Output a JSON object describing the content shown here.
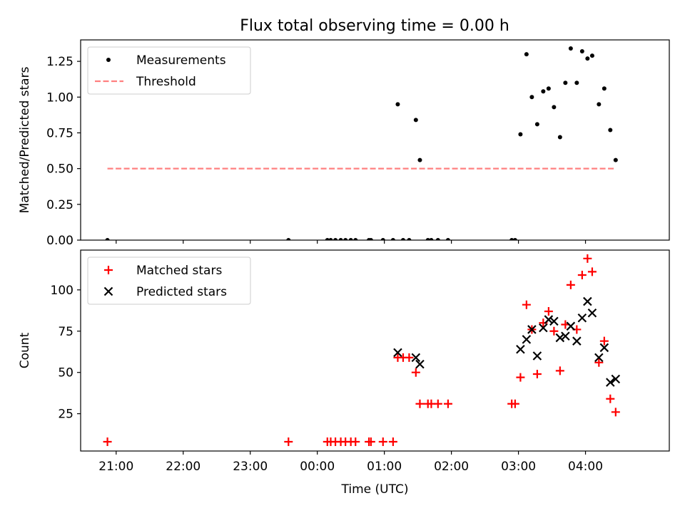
{
  "title": "Flux total observing time = 0.00 h",
  "colors": {
    "measurement": "#000000",
    "threshold": "#ff8080",
    "matched": "#ff0000",
    "predicted": "#000000",
    "frame": "#000000"
  },
  "chart_data": [
    {
      "type": "scatter",
      "name": "ratio",
      "title": "Flux total observing time = 0.00 h",
      "ylabel": "Matched/Predicted stars",
      "xlabel": "",
      "x_unit": "hours since 20:00 UTC",
      "xlim": [
        0.47,
        9.25
      ],
      "ylim": [
        0.0,
        1.4
      ],
      "yticks": [
        0.0,
        0.25,
        0.5,
        0.75,
        1.0,
        1.25
      ],
      "ytick_labels": [
        "0.00",
        "0.25",
        "0.50",
        "0.75",
        "1.00",
        "1.25"
      ],
      "xticks": [
        1,
        2,
        3,
        4,
        5,
        6,
        7,
        8
      ],
      "legend": {
        "placement": "top-left",
        "entries": [
          "Measurements",
          "Threshold"
        ]
      },
      "series": [
        {
          "name": "Measurements",
          "marker": "dot",
          "points": [
            [
              0.87,
              0.0
            ],
            [
              3.57,
              0.0
            ],
            [
              4.15,
              0.0
            ],
            [
              4.2,
              0.0
            ],
            [
              4.27,
              0.0
            ],
            [
              4.35,
              0.0
            ],
            [
              4.42,
              0.0
            ],
            [
              4.5,
              0.0
            ],
            [
              4.57,
              0.0
            ],
            [
              4.77,
              0.0
            ],
            [
              4.8,
              0.0
            ],
            [
              4.98,
              0.0
            ],
            [
              5.13,
              0.0
            ],
            [
              5.2,
              0.95
            ],
            [
              5.28,
              0.0
            ],
            [
              5.37,
              0.0
            ],
            [
              5.47,
              0.84
            ],
            [
              5.53,
              0.56
            ],
            [
              5.65,
              0.0
            ],
            [
              5.7,
              0.0
            ],
            [
              5.8,
              0.0
            ],
            [
              5.95,
              0.0
            ],
            [
              6.9,
              0.0
            ],
            [
              6.95,
              0.0
            ],
            [
              7.03,
              0.74
            ],
            [
              7.12,
              1.3
            ],
            [
              7.2,
              1.0
            ],
            [
              7.28,
              0.81
            ],
            [
              7.37,
              1.04
            ],
            [
              7.45,
              1.06
            ],
            [
              7.53,
              0.93
            ],
            [
              7.62,
              0.72
            ],
            [
              7.7,
              1.1
            ],
            [
              7.78,
              1.34
            ],
            [
              7.87,
              1.1
            ],
            [
              7.95,
              1.32
            ],
            [
              8.03,
              1.27
            ],
            [
              8.1,
              1.29
            ],
            [
              8.2,
              0.95
            ],
            [
              8.28,
              1.06
            ],
            [
              8.37,
              0.77
            ],
            [
              8.45,
              0.56
            ]
          ]
        },
        {
          "name": "Threshold",
          "style": "dashed",
          "points": [
            [
              0.87,
              0.5
            ],
            [
              8.45,
              0.5
            ]
          ]
        }
      ]
    },
    {
      "type": "scatter",
      "name": "counts",
      "title": "",
      "ylabel": "Count",
      "xlabel": "Time (UTC)",
      "x_unit": "hours since 20:00 UTC",
      "xlim": [
        0.47,
        9.25
      ],
      "ylim": [
        2.4,
        124.1
      ],
      "yticks": [
        25,
        50,
        75,
        100
      ],
      "ytick_labels": [
        "25",
        "50",
        "75",
        "100"
      ],
      "xticks": [
        1,
        2,
        3,
        4,
        5,
        6,
        7,
        8
      ],
      "xtick_labels": [
        "21:00",
        "22:00",
        "23:00",
        "00:00",
        "01:00",
        "02:00",
        "03:00",
        "04:00"
      ],
      "legend": {
        "placement": "top-left",
        "entries": [
          "Matched stars",
          "Predicted stars"
        ]
      },
      "series": [
        {
          "name": "Matched stars",
          "marker": "plus",
          "points": [
            [
              0.87,
              8
            ],
            [
              3.57,
              8
            ],
            [
              4.15,
              8
            ],
            [
              4.2,
              8
            ],
            [
              4.27,
              8
            ],
            [
              4.35,
              8
            ],
            [
              4.42,
              8
            ],
            [
              4.5,
              8
            ],
            [
              4.57,
              8
            ],
            [
              4.77,
              8
            ],
            [
              4.8,
              8
            ],
            [
              4.98,
              8
            ],
            [
              5.13,
              8
            ],
            [
              5.2,
              59
            ],
            [
              5.28,
              59
            ],
            [
              5.37,
              59
            ],
            [
              5.47,
              50
            ],
            [
              5.53,
              31
            ],
            [
              5.65,
              31
            ],
            [
              5.7,
              31
            ],
            [
              5.8,
              31
            ],
            [
              5.95,
              31
            ],
            [
              6.9,
              31
            ],
            [
              6.95,
              31
            ],
            [
              7.03,
              47
            ],
            [
              7.12,
              91
            ],
            [
              7.2,
              76
            ],
            [
              7.28,
              49
            ],
            [
              7.37,
              80
            ],
            [
              7.45,
              87
            ],
            [
              7.53,
              75
            ],
            [
              7.62,
              51
            ],
            [
              7.7,
              79
            ],
            [
              7.78,
              103
            ],
            [
              7.87,
              76
            ],
            [
              7.95,
              109
            ],
            [
              8.03,
              119
            ],
            [
              8.1,
              111
            ],
            [
              8.2,
              56
            ],
            [
              8.28,
              69
            ],
            [
              8.37,
              34
            ],
            [
              8.45,
              26
            ]
          ]
        },
        {
          "name": "Predicted stars",
          "marker": "x",
          "points": [
            [
              5.2,
              62
            ],
            [
              5.47,
              59
            ],
            [
              5.53,
              55
            ],
            [
              7.03,
              64
            ],
            [
              7.12,
              70
            ],
            [
              7.2,
              76
            ],
            [
              7.28,
              60
            ],
            [
              7.37,
              77
            ],
            [
              7.45,
              82
            ],
            [
              7.53,
              81
            ],
            [
              7.62,
              71
            ],
            [
              7.7,
              72
            ],
            [
              7.78,
              78
            ],
            [
              7.87,
              69
            ],
            [
              7.95,
              83
            ],
            [
              8.03,
              93
            ],
            [
              8.1,
              86
            ],
            [
              8.2,
              59
            ],
            [
              8.28,
              65
            ],
            [
              8.37,
              44
            ],
            [
              8.45,
              46
            ]
          ]
        }
      ]
    }
  ]
}
